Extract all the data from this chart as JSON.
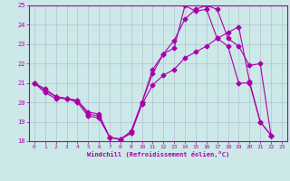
{
  "xlabel": "Windchill (Refroidissement éolien,°C)",
  "bg_color": "#cce8e8",
  "line_color": "#aa00aa",
  "grid_color": "#aabbcc",
  "xlim": [
    -0.5,
    23.5
  ],
  "ylim": [
    18,
    25
  ],
  "xticks": [
    0,
    1,
    2,
    3,
    4,
    5,
    6,
    7,
    8,
    9,
    10,
    11,
    12,
    13,
    14,
    15,
    16,
    17,
    18,
    19,
    20,
    21,
    22,
    23
  ],
  "yticks": [
    18,
    19,
    20,
    21,
    22,
    23,
    24,
    25
  ],
  "line1_x": [
    0,
    1,
    2,
    3,
    4,
    5,
    6,
    7,
    8,
    9,
    10,
    11,
    12,
    13,
    14,
    15,
    16,
    17,
    18,
    19,
    20,
    21,
    22
  ],
  "line1_y": [
    21.0,
    20.7,
    20.3,
    20.2,
    20.1,
    19.5,
    19.4,
    18.2,
    18.1,
    18.5,
    20.0,
    21.7,
    22.5,
    22.8,
    25.0,
    24.7,
    24.8,
    23.3,
    22.9,
    21.0,
    21.0,
    19.0,
    18.3
  ],
  "line2_x": [
    0,
    1,
    2,
    3,
    4,
    5,
    6,
    7,
    8,
    9,
    10,
    11,
    12,
    13,
    14,
    15,
    16,
    17,
    18,
    19,
    20,
    21,
    22
  ],
  "line2_y": [
    21.0,
    20.6,
    20.3,
    20.2,
    20.1,
    19.4,
    19.3,
    18.2,
    18.1,
    18.4,
    19.9,
    20.9,
    21.4,
    21.7,
    22.3,
    22.6,
    22.9,
    23.3,
    23.6,
    23.9,
    21.1,
    19.0,
    18.3
  ],
  "line3_x": [
    0,
    1,
    2,
    3,
    4,
    5,
    6,
    7,
    8,
    9,
    10,
    11,
    12,
    13,
    14,
    15,
    16,
    17,
    18,
    19,
    20,
    21,
    22
  ],
  "line3_y": [
    21.0,
    20.5,
    20.2,
    20.2,
    20.0,
    19.3,
    19.2,
    18.2,
    18.1,
    18.5,
    20.0,
    21.5,
    22.5,
    23.2,
    24.3,
    24.8,
    25.0,
    24.8,
    23.3,
    22.9,
    21.9,
    22.0,
    18.3
  ]
}
